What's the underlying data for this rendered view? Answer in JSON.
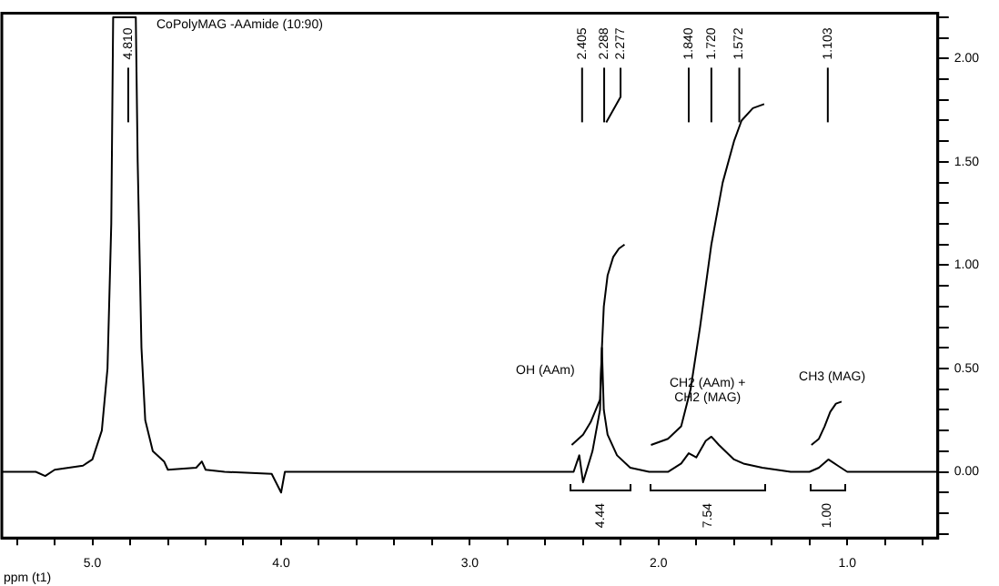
{
  "chart_data": {
    "type": "line",
    "title": "CoPolyMAG -AAmide (10:90)",
    "xlabel": "ppm (t1)",
    "xlim": [
      5.48,
      0.52
    ],
    "xticks": [
      {
        "value": 5.4,
        "label": null
      },
      {
        "value": 5.2,
        "label": null
      },
      {
        "value": 5,
        "label": "5.0"
      },
      {
        "value": 4.8,
        "label": null
      },
      {
        "value": 4.6,
        "label": null
      },
      {
        "value": 4.4,
        "label": null
      },
      {
        "value": 4.2,
        "label": null
      },
      {
        "value": 4,
        "label": "4.0"
      },
      {
        "value": 3.8,
        "label": null
      },
      {
        "value": 3.6,
        "label": null
      },
      {
        "value": 3.4,
        "label": null
      },
      {
        "value": 3.2,
        "label": null
      },
      {
        "value": 3,
        "label": "3.0"
      },
      {
        "value": 2.8,
        "label": null
      },
      {
        "value": 2.6,
        "label": null
      },
      {
        "value": 2.4,
        "label": null
      },
      {
        "value": 2.2,
        "label": null
      },
      {
        "value": 2,
        "label": "2.0"
      },
      {
        "value": 1.8,
        "label": null
      },
      {
        "value": 1.6,
        "label": null
      },
      {
        "value": 1.4,
        "label": null
      },
      {
        "value": 1.2,
        "label": null
      },
      {
        "value": 1,
        "label": "1.0"
      },
      {
        "value": 0.8,
        "label": null
      },
      {
        "value": 0.6,
        "label": null
      }
    ],
    "ylim": [
      -0.32,
      2.22
    ],
    "yticks": [
      {
        "value": -0.3,
        "label": null
      },
      {
        "value": -0.2,
        "label": null
      },
      {
        "value": -0.1,
        "label": null
      },
      {
        "value": 0,
        "label": "0.00"
      },
      {
        "value": 0.1,
        "label": null
      },
      {
        "value": 0.2,
        "label": null
      },
      {
        "value": 0.3,
        "label": null
      },
      {
        "value": 0.4,
        "label": null
      },
      {
        "value": 0.5,
        "label": "0.50"
      },
      {
        "value": 0.6,
        "label": null
      },
      {
        "value": 0.7,
        "label": null
      },
      {
        "value": 0.8,
        "label": null
      },
      {
        "value": 0.9,
        "label": null
      },
      {
        "value": 1,
        "label": "1.00"
      },
      {
        "value": 1.1,
        "label": null
      },
      {
        "value": 1.2,
        "label": null
      },
      {
        "value": 1.3,
        "label": null
      },
      {
        "value": 1.4,
        "label": null
      },
      {
        "value": 1.5,
        "label": "1.50"
      },
      {
        "value": 1.6,
        "label": null
      },
      {
        "value": 1.7,
        "label": null
      },
      {
        "value": 1.8,
        "label": null
      },
      {
        "value": 1.9,
        "label": null
      },
      {
        "value": 2,
        "label": "2.00"
      },
      {
        "value": 2.1,
        "label": null
      },
      {
        "value": 2.2,
        "label": null
      }
    ],
    "grid": false,
    "legend": false,
    "marker": "none",
    "line_style": "solid",
    "series": [
      {
        "color": "#000000",
        "x": [
          5.48,
          5.3,
          5.25,
          5.2,
          5.05,
          5.0,
          4.95,
          4.92,
          4.9,
          4.89,
          4.77,
          4.76,
          4.74,
          4.72,
          4.68,
          4.62,
          4.6,
          4.45,
          4.42,
          4.4,
          4.3,
          4.05,
          4.0,
          3.98,
          3.5,
          3.0,
          2.6,
          2.45,
          2.42,
          2.4,
          2.35,
          2.31,
          2.3,
          2.29,
          2.27,
          2.22,
          2.15,
          2.05,
          1.95,
          1.88,
          1.84,
          1.8,
          1.75,
          1.72,
          1.68,
          1.6,
          1.55,
          1.45,
          1.3,
          1.2,
          1.15,
          1.1,
          1.05,
          1.0,
          0.52
        ],
        "values": [
          0,
          0,
          -0.02,
          0.01,
          0.03,
          0.06,
          0.2,
          0.5,
          1.2,
          2.2,
          2.2,
          1.5,
          0.6,
          0.25,
          0.1,
          0.05,
          0.01,
          0.02,
          0.05,
          0.01,
          0,
          -0.01,
          -0.1,
          0,
          0,
          0,
          0,
          0,
          0.08,
          -0.05,
          0.1,
          0.3,
          0.6,
          0.3,
          0.18,
          0.08,
          0.02,
          0,
          0,
          0.04,
          0.09,
          0.07,
          0.15,
          0.17,
          0.13,
          0.06,
          0.04,
          0.02,
          0,
          0,
          0.02,
          0.06,
          0.03,
          0,
          0
        ]
      },
      {
        "color": "#000000",
        "x": [
          2.46,
          2.4,
          2.36,
          2.31,
          2.3,
          2.29,
          2.27,
          2.24,
          2.21,
          2.18
        ],
        "values": [
          0.13,
          0.18,
          0.24,
          0.35,
          0.6,
          0.8,
          0.95,
          1.04,
          1.08,
          1.1
        ]
      },
      {
        "color": "#000000",
        "x": [
          2.04,
          1.95,
          1.88,
          1.83,
          1.78,
          1.72,
          1.66,
          1.6,
          1.56,
          1.5,
          1.44
        ],
        "values": [
          0.13,
          0.16,
          0.22,
          0.4,
          0.7,
          1.1,
          1.4,
          1.6,
          1.7,
          1.76,
          1.78
        ]
      },
      {
        "color": "#000000",
        "x": [
          1.19,
          1.15,
          1.12,
          1.09,
          1.06,
          1.03
        ],
        "values": [
          0.13,
          0.16,
          0.22,
          0.29,
          0.33,
          0.34
        ]
      }
    ],
    "annotations": [
      {
        "text": "4.810",
        "x": 4.81
      },
      {
        "text": "2.405",
        "x": 2.405
      },
      {
        "text": "2.288",
        "x": 2.288
      },
      {
        "text": "2.277",
        "x": 2.277
      },
      {
        "text": "1.840",
        "x": 1.84
      },
      {
        "text": "1.720",
        "x": 1.72
      },
      {
        "text": "1.572",
        "x": 1.572
      },
      {
        "text": "1.103",
        "x": 1.103
      },
      "OH (AAm)",
      "CH2 (AAm) +\nCH2 (MAG)",
      "CH3 (MAG)",
      "4.44",
      "7.54",
      "1.00"
    ]
  }
}
